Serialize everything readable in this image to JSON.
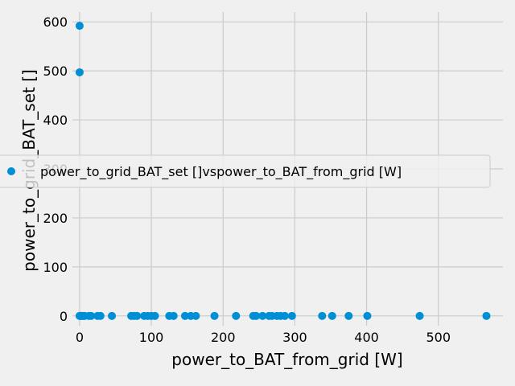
{
  "chart_data": {
    "type": "scatter",
    "title": "",
    "xlabel": "power_to_BAT_from_grid [W]",
    "ylabel": "power_to_grid_BAT_set []",
    "xlim": [
      -10,
      590
    ],
    "ylim": [
      -20,
      620
    ],
    "x_ticks": [
      0,
      100,
      200,
      300,
      400,
      500
    ],
    "y_ticks": [
      0,
      100,
      200,
      300,
      400,
      500,
      600
    ],
    "grid": true,
    "legend_position": "center-right",
    "series": [
      {
        "name": "power_to_grid_BAT_set []vspower_to_BAT_from_grid [W]",
        "color": "#008fd5",
        "points": [
          [
            0,
            592
          ],
          [
            0,
            497
          ],
          [
            0,
            0
          ],
          [
            1,
            0
          ],
          [
            2,
            0
          ],
          [
            3,
            0
          ],
          [
            5,
            0
          ],
          [
            7,
            0
          ],
          [
            13,
            0
          ],
          [
            16,
            0
          ],
          [
            25,
            0
          ],
          [
            29,
            0
          ],
          [
            45,
            0
          ],
          [
            72,
            0
          ],
          [
            76,
            0
          ],
          [
            80,
            0
          ],
          [
            90,
            0
          ],
          [
            95,
            0
          ],
          [
            100,
            0
          ],
          [
            105,
            0
          ],
          [
            125,
            0
          ],
          [
            131,
            0
          ],
          [
            147,
            0
          ],
          [
            155,
            0
          ],
          [
            162,
            0
          ],
          [
            188,
            0
          ],
          [
            218,
            0
          ],
          [
            242,
            0
          ],
          [
            246,
            0
          ],
          [
            255,
            0
          ],
          [
            264,
            0
          ],
          [
            268,
            0
          ],
          [
            275,
            0
          ],
          [
            280,
            0
          ],
          [
            286,
            0
          ],
          [
            296,
            0
          ],
          [
            338,
            0
          ],
          [
            352,
            0
          ],
          [
            375,
            0
          ],
          [
            401,
            0
          ],
          [
            474,
            0
          ],
          [
            567,
            0
          ]
        ]
      }
    ]
  }
}
